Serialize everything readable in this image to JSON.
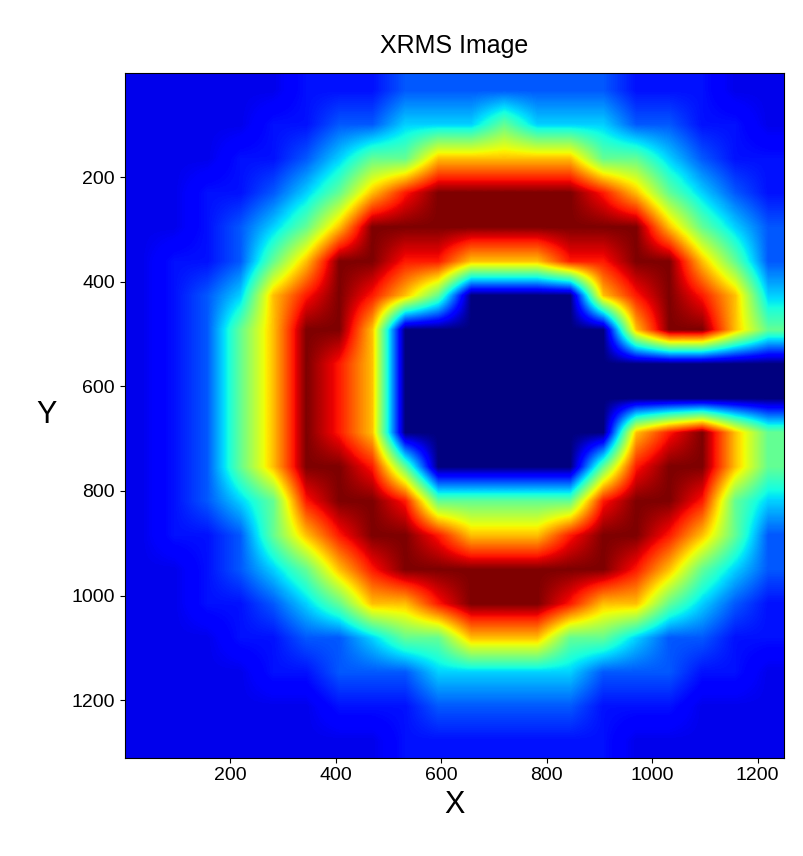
{
  "chart_data": {
    "type": "heatmap",
    "title": "XRMS Image",
    "xlabel": "X",
    "ylabel": "Y",
    "color": "jet",
    "xlim": [
      0,
      1250
    ],
    "ylim": [
      1310,
      0
    ],
    "xticks": [
      200,
      400,
      600,
      800,
      1000,
      1200
    ],
    "yticks": [
      200,
      400,
      600,
      800,
      1000,
      1200
    ],
    "cells": [
      [
        0.8,
        0.8,
        0.8,
        0.8,
        0.8,
        1.2,
        1.2,
        1.2,
        1.8,
        1.8,
        1.8,
        1.8,
        1.8,
        1.8,
        1.8,
        1.2,
        1.2,
        1.2,
        0.8,
        0.8
      ],
      [
        0.8,
        0.8,
        0.8,
        0.8,
        1.2,
        1.2,
        1.8,
        1.8,
        2.8,
        2.8,
        2.8,
        4,
        2.8,
        2.8,
        2.8,
        1.8,
        1.8,
        1.2,
        1.2,
        0.8
      ],
      [
        0.8,
        0.8,
        0.8,
        1.2,
        1.2,
        1.8,
        2.8,
        4,
        4,
        6,
        6,
        6,
        6,
        6,
        4,
        4,
        2.8,
        1.8,
        1.2,
        1.2
      ],
      [
        0.8,
        0.8,
        1.2,
        1.2,
        1.8,
        2.8,
        4,
        6,
        7.5,
        8.5,
        8.5,
        8.5,
        8.5,
        8.5,
        7.5,
        6,
        4,
        2.8,
        1.8,
        1.2
      ],
      [
        0.8,
        0.8,
        1.2,
        1.8,
        2.8,
        4,
        6,
        8.5,
        8.5,
        8.5,
        8.5,
        8.5,
        8.5,
        8.5,
        8.5,
        8.5,
        6,
        4,
        2.8,
        1.8
      ],
      [
        0.8,
        1.2,
        1.2,
        1.8,
        4,
        6,
        8.5,
        8.5,
        7.5,
        7.5,
        6,
        6,
        6,
        7.5,
        7.5,
        8.5,
        8.5,
        6,
        4,
        1.8
      ],
      [
        0.8,
        1.2,
        1.8,
        2.8,
        6,
        7.5,
        8.5,
        7.5,
        6,
        4,
        0,
        0,
        0,
        0,
        6,
        7.5,
        8.5,
        7.5,
        6,
        2.8
      ],
      [
        0.8,
        1.2,
        1.8,
        4,
        6,
        8.5,
        8.5,
        6,
        0,
        0,
        0,
        0,
        0,
        0,
        0,
        6,
        8.5,
        8.5,
        6,
        4
      ],
      [
        0.8,
        1.2,
        1.8,
        4,
        6,
        8.5,
        7.5,
        6,
        0,
        0,
        0,
        0,
        0,
        0,
        0,
        0,
        0,
        0,
        0,
        0
      ],
      [
        0.8,
        1.2,
        1.8,
        4,
        6,
        8.5,
        7.5,
        6,
        0,
        0,
        0,
        0,
        0,
        0,
        0,
        0,
        0,
        0,
        0,
        0
      ],
      [
        0.8,
        1.2,
        1.8,
        4,
        6,
        8.5,
        7.5,
        6,
        0,
        0,
        0,
        0,
        0,
        0,
        0,
        6,
        7.5,
        8.5,
        6,
        4
      ],
      [
        0.8,
        1.2,
        1.8,
        4,
        6,
        8.5,
        8.5,
        7.5,
        4,
        0,
        0,
        0,
        0,
        0,
        4,
        7.5,
        8.5,
        8.5,
        6,
        4
      ],
      [
        0.8,
        1.2,
        1.8,
        2.8,
        4,
        7.5,
        8.5,
        8.5,
        7.5,
        4,
        4,
        4,
        4,
        4,
        7.5,
        8.5,
        8.5,
        7.5,
        4,
        2.8
      ],
      [
        0.8,
        1.2,
        1.2,
        1.8,
        4,
        6,
        7.5,
        8.5,
        8.5,
        7.5,
        6,
        6,
        6,
        7.5,
        8.5,
        8.5,
        7.5,
        6,
        4,
        1.8
      ],
      [
        0.8,
        0.8,
        1.2,
        1.8,
        2.8,
        4,
        6,
        7.5,
        8.5,
        8.5,
        8.5,
        8.5,
        8.5,
        8.5,
        8.5,
        7.5,
        6,
        4,
        2.8,
        1.8
      ],
      [
        0.8,
        0.8,
        1.2,
        1.2,
        1.8,
        2.8,
        4,
        6,
        6,
        7.5,
        8.5,
        8.5,
        8.5,
        7.5,
        6,
        6,
        4,
        2.8,
        1.8,
        1.2
      ],
      [
        0.8,
        0.8,
        0.8,
        1.2,
        1.2,
        1.8,
        1.8,
        2.8,
        4,
        4,
        6,
        6,
        6,
        4,
        4,
        2.8,
        1.8,
        1.8,
        1.2,
        1.2
      ],
      [
        0.8,
        0.8,
        0.8,
        0.8,
        1.2,
        1.2,
        1.8,
        1.8,
        1.8,
        2.8,
        2.8,
        2.8,
        2.8,
        2.8,
        1.8,
        1.8,
        1.8,
        1.2,
        1.2,
        0.8
      ],
      [
        0.8,
        0.8,
        0.8,
        0.8,
        0.8,
        0.8,
        1.2,
        1.2,
        1.2,
        1.8,
        1.8,
        1.8,
        1.8,
        1.8,
        1.2,
        1.2,
        1.2,
        0.8,
        0.8,
        0.8
      ],
      [
        0.8,
        0.8,
        0.8,
        0.8,
        0.8,
        0.8,
        0.8,
        0.8,
        1.2,
        1.2,
        1.2,
        1.2,
        1.2,
        1.2,
        1.2,
        0.8,
        0.8,
        0.8,
        0.8,
        0.8
      ]
    ]
  }
}
